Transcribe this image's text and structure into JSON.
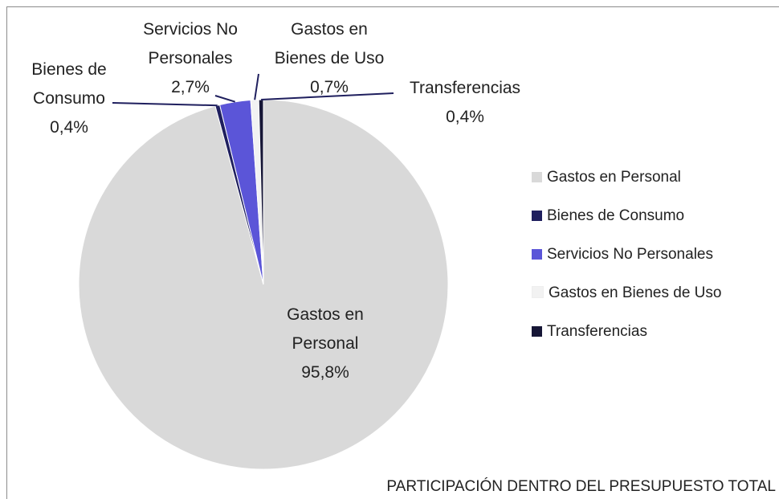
{
  "chart_data": {
    "type": "pie",
    "title": "PARTICIPACIÓN DENTRO DEL PRESUPUESTO TOTAL",
    "categories": [
      "Gastos en Personal",
      "Bienes de Consumo",
      "Servicios No Personales",
      "Gastos en Bienes de Uso",
      "Transferencias"
    ],
    "values": [
      95.8,
      0.4,
      2.7,
      0.7,
      0.4
    ],
    "value_labels": [
      "95,8%",
      "0,4%",
      "2,7%",
      "0,7%",
      "0,4%"
    ],
    "colors": [
      "#d9d9d9",
      "#1f1f5e",
      "#5b55d8",
      "#f2f2f2",
      "#161636"
    ],
    "legend": "right"
  }
}
